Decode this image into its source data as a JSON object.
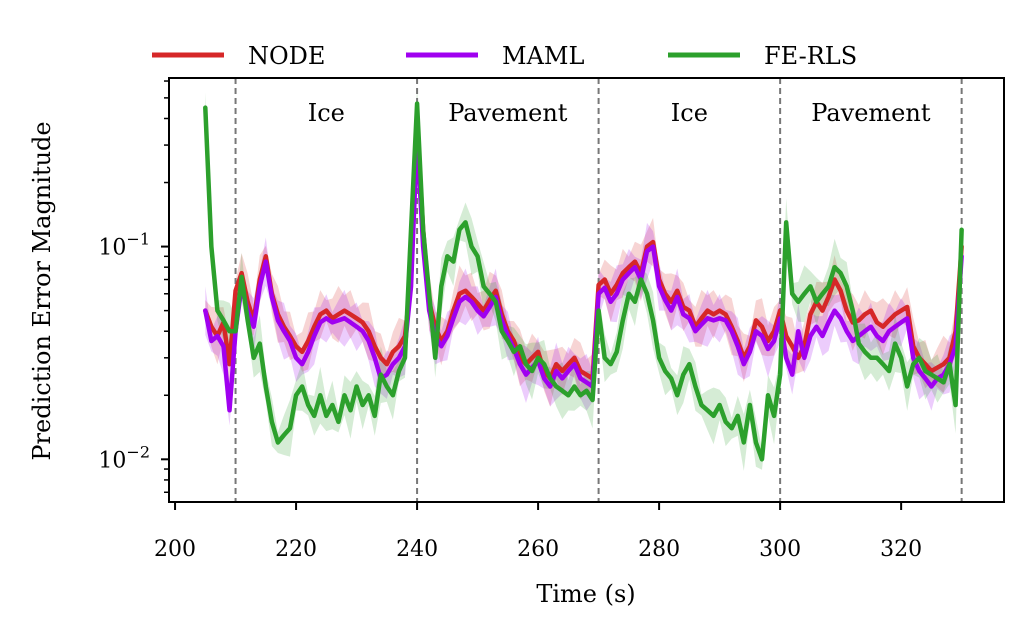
{
  "chart_data": {
    "type": "line",
    "xlabel": "Time (s)",
    "ylabel": "Prediction Error Magnitude",
    "xlim": [
      199,
      337
    ],
    "ylim": [
      0.0063,
      0.62
    ],
    "yscale": "log",
    "xticks": [
      200,
      220,
      240,
      260,
      280,
      300,
      320
    ],
    "yticks": [
      0.01,
      0.1
    ],
    "ytick_labels": [
      {
        "base": "10",
        "exp": "−2"
      },
      {
        "base": "10",
        "exp": "−1"
      }
    ],
    "grid": false,
    "legend": {
      "placement": "top",
      "entries": [
        "NODE",
        "MAML",
        "FE-RLS"
      ]
    },
    "boundaries": [
      210,
      240,
      270,
      300,
      330
    ],
    "regions": [
      {
        "label": "Ice",
        "x": 225
      },
      {
        "label": "Pavement",
        "x": 255
      },
      {
        "label": "Ice",
        "x": 285
      },
      {
        "label": "Pavement",
        "x": 315
      }
    ],
    "series": [
      {
        "name": "NODE",
        "color": "#d62728",
        "x": [
          205,
          206,
          207,
          208,
          209,
          210,
          211,
          212,
          213,
          214,
          215,
          216,
          217,
          218,
          219,
          220,
          221,
          222,
          223,
          224,
          225,
          226,
          227,
          228,
          229,
          230,
          231,
          232,
          233,
          234,
          235,
          236,
          237,
          238,
          239,
          240,
          241,
          242,
          243,
          244,
          245,
          246,
          247,
          248,
          249,
          250,
          251,
          252,
          253,
          254,
          255,
          256,
          257,
          258,
          259,
          260,
          261,
          262,
          263,
          264,
          265,
          266,
          267,
          268,
          269,
          270,
          271,
          272,
          273,
          274,
          275,
          276,
          277,
          278,
          279,
          280,
          281,
          282,
          283,
          284,
          285,
          286,
          287,
          288,
          289,
          290,
          291,
          292,
          293,
          294,
          295,
          296,
          297,
          298,
          299,
          300,
          301,
          302,
          303,
          304,
          305,
          306,
          307,
          308,
          309,
          310,
          311,
          312,
          313,
          314,
          315,
          316,
          317,
          318,
          319,
          320,
          321,
          322,
          323,
          324,
          325,
          326,
          327,
          328,
          329,
          330
        ],
        "values": [
          0.05,
          0.042,
          0.038,
          0.044,
          0.028,
          0.062,
          0.075,
          0.055,
          0.045,
          0.07,
          0.09,
          0.06,
          0.048,
          0.042,
          0.038,
          0.034,
          0.032,
          0.036,
          0.042,
          0.048,
          0.05,
          0.046,
          0.048,
          0.05,
          0.048,
          0.046,
          0.044,
          0.04,
          0.034,
          0.03,
          0.028,
          0.032,
          0.034,
          0.038,
          0.07,
          0.38,
          0.12,
          0.055,
          0.042,
          0.036,
          0.04,
          0.05,
          0.06,
          0.062,
          0.058,
          0.054,
          0.05,
          0.056,
          0.062,
          0.048,
          0.04,
          0.036,
          0.03,
          0.028,
          0.03,
          0.032,
          0.026,
          0.024,
          0.028,
          0.026,
          0.028,
          0.03,
          0.026,
          0.025,
          0.024,
          0.066,
          0.07,
          0.06,
          0.066,
          0.075,
          0.08,
          0.085,
          0.075,
          0.1,
          0.105,
          0.07,
          0.06,
          0.055,
          0.062,
          0.052,
          0.05,
          0.042,
          0.046,
          0.05,
          0.048,
          0.05,
          0.048,
          0.042,
          0.036,
          0.03,
          0.034,
          0.045,
          0.042,
          0.036,
          0.04,
          0.05,
          0.038,
          0.034,
          0.03,
          0.034,
          0.048,
          0.055,
          0.05,
          0.058,
          0.07,
          0.062,
          0.05,
          0.044,
          0.045,
          0.048,
          0.05,
          0.044,
          0.042,
          0.045,
          0.048,
          0.05,
          0.052,
          0.034,
          0.03,
          0.028,
          0.026,
          0.027,
          0.028,
          0.03,
          0.04,
          0.1
        ]
      },
      {
        "name": "MAML",
        "color": "#a000f0",
        "x": [
          205,
          206,
          207,
          208,
          209,
          210,
          211,
          212,
          213,
          214,
          215,
          216,
          217,
          218,
          219,
          220,
          221,
          222,
          223,
          224,
          225,
          226,
          227,
          228,
          229,
          230,
          231,
          232,
          233,
          234,
          235,
          236,
          237,
          238,
          239,
          240,
          241,
          242,
          243,
          244,
          245,
          246,
          247,
          248,
          249,
          250,
          251,
          252,
          253,
          254,
          255,
          256,
          257,
          258,
          259,
          260,
          261,
          262,
          263,
          264,
          265,
          266,
          267,
          268,
          269,
          270,
          271,
          272,
          273,
          274,
          275,
          276,
          277,
          278,
          279,
          280,
          281,
          282,
          283,
          284,
          285,
          286,
          287,
          288,
          289,
          290,
          291,
          292,
          293,
          294,
          295,
          296,
          297,
          298,
          299,
          300,
          301,
          302,
          303,
          304,
          305,
          306,
          307,
          308,
          309,
          310,
          311,
          312,
          313,
          314,
          315,
          316,
          317,
          318,
          319,
          320,
          321,
          322,
          323,
          324,
          325,
          326,
          327,
          328,
          329,
          330
        ],
        "values": [
          0.05,
          0.036,
          0.038,
          0.034,
          0.017,
          0.04,
          0.065,
          0.05,
          0.042,
          0.065,
          0.085,
          0.058,
          0.045,
          0.04,
          0.036,
          0.03,
          0.028,
          0.032,
          0.038,
          0.044,
          0.046,
          0.044,
          0.045,
          0.046,
          0.044,
          0.042,
          0.04,
          0.036,
          0.03,
          0.024,
          0.025,
          0.028,
          0.03,
          0.034,
          0.065,
          0.33,
          0.1,
          0.05,
          0.038,
          0.034,
          0.038,
          0.046,
          0.055,
          0.058,
          0.055,
          0.05,
          0.047,
          0.052,
          0.058,
          0.045,
          0.038,
          0.033,
          0.028,
          0.025,
          0.027,
          0.029,
          0.024,
          0.022,
          0.026,
          0.024,
          0.026,
          0.028,
          0.024,
          0.023,
          0.022,
          0.06,
          0.064,
          0.055,
          0.06,
          0.07,
          0.075,
          0.08,
          0.07,
          0.095,
          0.1,
          0.065,
          0.056,
          0.05,
          0.058,
          0.048,
          0.046,
          0.04,
          0.043,
          0.046,
          0.045,
          0.046,
          0.045,
          0.04,
          0.034,
          0.028,
          0.032,
          0.04,
          0.038,
          0.033,
          0.036,
          0.046,
          0.03,
          0.025,
          0.04,
          0.03,
          0.038,
          0.042,
          0.038,
          0.044,
          0.05,
          0.046,
          0.04,
          0.036,
          0.038,
          0.04,
          0.042,
          0.038,
          0.036,
          0.04,
          0.042,
          0.044,
          0.046,
          0.03,
          0.026,
          0.024,
          0.022,
          0.024,
          0.025,
          0.028,
          0.034,
          0.09
        ]
      },
      {
        "name": "FE-RLS",
        "color": "#2ca02c",
        "x": [
          205,
          206,
          207,
          208,
          209,
          210,
          211,
          212,
          213,
          214,
          215,
          216,
          217,
          218,
          219,
          220,
          221,
          222,
          223,
          224,
          225,
          226,
          227,
          228,
          229,
          230,
          231,
          232,
          233,
          234,
          235,
          236,
          237,
          238,
          239,
          240,
          241,
          242,
          243,
          244,
          245,
          246,
          247,
          248,
          249,
          250,
          251,
          252,
          253,
          254,
          255,
          256,
          257,
          258,
          259,
          260,
          261,
          262,
          263,
          264,
          265,
          266,
          267,
          268,
          269,
          270,
          271,
          272,
          273,
          274,
          275,
          276,
          277,
          278,
          279,
          280,
          281,
          282,
          283,
          284,
          285,
          286,
          287,
          288,
          289,
          290,
          291,
          292,
          293,
          294,
          295,
          296,
          297,
          298,
          299,
          300,
          301,
          302,
          303,
          304,
          305,
          306,
          307,
          308,
          309,
          310,
          311,
          312,
          313,
          314,
          315,
          316,
          317,
          318,
          319,
          320,
          321,
          322,
          323,
          324,
          325,
          326,
          327,
          328,
          329,
          330
        ],
        "values": [
          0.45,
          0.1,
          0.05,
          0.045,
          0.04,
          0.04,
          0.072,
          0.045,
          0.03,
          0.035,
          0.022,
          0.015,
          0.012,
          0.013,
          0.014,
          0.02,
          0.022,
          0.018,
          0.016,
          0.02,
          0.016,
          0.018,
          0.015,
          0.02,
          0.017,
          0.022,
          0.018,
          0.02,
          0.016,
          0.025,
          0.022,
          0.02,
          0.026,
          0.03,
          0.12,
          0.47,
          0.12,
          0.06,
          0.03,
          0.065,
          0.09,
          0.085,
          0.12,
          0.13,
          0.1,
          0.09,
          0.065,
          0.06,
          0.055,
          0.04,
          0.036,
          0.032,
          0.034,
          0.028,
          0.026,
          0.03,
          0.028,
          0.024,
          0.022,
          0.021,
          0.02,
          0.022,
          0.02,
          0.021,
          0.019,
          0.05,
          0.03,
          0.028,
          0.032,
          0.045,
          0.06,
          0.055,
          0.07,
          0.06,
          0.045,
          0.03,
          0.026,
          0.024,
          0.02,
          0.025,
          0.028,
          0.022,
          0.018,
          0.017,
          0.016,
          0.018,
          0.015,
          0.014,
          0.016,
          0.012,
          0.018,
          0.012,
          0.01,
          0.02,
          0.016,
          0.025,
          0.13,
          0.06,
          0.055,
          0.06,
          0.065,
          0.055,
          0.06,
          0.065,
          0.08,
          0.075,
          0.065,
          0.05,
          0.035,
          0.032,
          0.03,
          0.03,
          0.028,
          0.026,
          0.035,
          0.03,
          0.022,
          0.028,
          0.03,
          0.026,
          0.025,
          0.024,
          0.023,
          0.028,
          0.018,
          0.12
        ]
      }
    ]
  }
}
